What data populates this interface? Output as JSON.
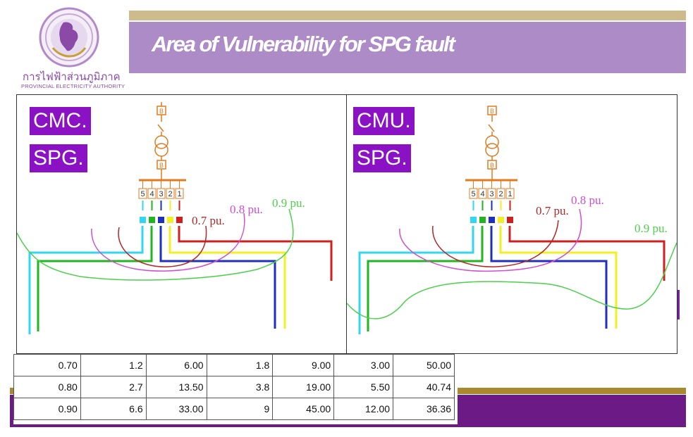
{
  "slide": {
    "title": "Area of Vulnerability for SPG fault",
    "org_thai": "การไฟฟ้าส่วนภูมิภาค",
    "org_english": "PROVINCIAL ELECTRICITY AUTHORITY"
  },
  "panels": [
    {
      "tag1": "CMC.",
      "tag2": "SPG.",
      "labels": {
        "p07": "0.7 pu.",
        "p08": "0.8 pu.",
        "p09": "0.9 pu."
      }
    },
    {
      "tag1": "CMU.",
      "tag2": "SPG.",
      "labels": {
        "p07": "0.7 pu.",
        "p08": "0.8 pu.",
        "p09": "0.9 pu."
      }
    }
  ],
  "diagram": {
    "breaker_label": "B",
    "feeder_numbers": [
      "5",
      "4",
      "3",
      "2",
      "1"
    ],
    "colors": {
      "cyan": "#33d6f0",
      "green": "#22b522",
      "blue": "#1f2fbf",
      "yellow": "#f2ef22",
      "red": "#d11f1f",
      "orange": "#e07b1f",
      "curve07": "#b02828",
      "curve08": "#d04cd0",
      "curve09": "#4cd04c"
    }
  },
  "table": {
    "rows": [
      [
        "0.70",
        "1.2",
        "6.00",
        "1.8",
        "9.00",
        "3.00",
        "50.00"
      ],
      [
        "0.80",
        "2.7",
        "13.50",
        "3.8",
        "19.00",
        "5.50",
        "40.74"
      ],
      [
        "0.90",
        "6.6",
        "33.00",
        "9",
        "45.00",
        "12.00",
        "36.36"
      ]
    ]
  }
}
